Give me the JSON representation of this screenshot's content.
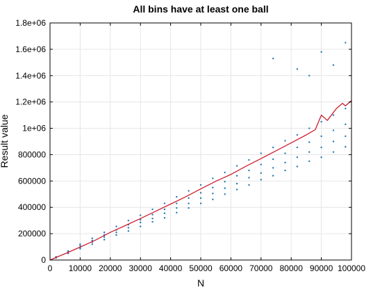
{
  "chart_data": {
    "type": "scatter",
    "title": "All bins have at least one ball",
    "xlabel": "N",
    "ylabel": "Result value",
    "xlim": [
      0,
      100000
    ],
    "ylim": [
      0,
      1800000
    ],
    "grid": true,
    "legend": "none",
    "x_ticks": [
      0,
      10000,
      20000,
      30000,
      40000,
      50000,
      60000,
      70000,
      80000,
      90000,
      100000
    ],
    "x_tick_labels": [
      "0",
      "10000",
      "20000",
      "30000",
      "40000",
      "50000",
      "60000",
      "70000",
      "80000",
      "90000",
      "100000"
    ],
    "y_ticks": [
      0,
      200000,
      400000,
      600000,
      800000,
      1000000,
      1200000,
      1400000,
      1600000,
      1800000
    ],
    "y_tick_labels": [
      "0",
      "200000",
      "400000",
      "600000",
      "800000",
      "1e+06",
      "1.2e+06",
      "1.4e+06",
      "1.6e+06",
      "1.8e+06"
    ],
    "series": [
      {
        "kind": "scatter",
        "color": "#1f77b4",
        "x": [
          2000,
          2000,
          2000,
          6000,
          6000,
          6000,
          10000,
          10000,
          10000,
          10000,
          14000,
          14000,
          14000,
          14000,
          18000,
          18000,
          18000,
          18000,
          22000,
          22000,
          22000,
          22000,
          26000,
          26000,
          26000,
          26000,
          30000,
          30000,
          30000,
          30000,
          34000,
          34000,
          34000,
          34000,
          38000,
          38000,
          38000,
          38000,
          42000,
          42000,
          42000,
          42000,
          46000,
          46000,
          46000,
          46000,
          50000,
          50000,
          50000,
          50000,
          54000,
          54000,
          54000,
          54000,
          58000,
          58000,
          58000,
          58000,
          62000,
          62000,
          62000,
          62000,
          66000,
          66000,
          66000,
          66000,
          70000,
          70000,
          70000,
          70000,
          74000,
          74000,
          74000,
          74000,
          74000,
          78000,
          78000,
          78000,
          78000,
          82000,
          82000,
          82000,
          82000,
          82000,
          86000,
          86000,
          86000,
          86000,
          86000,
          90000,
          90000,
          90000,
          90000,
          90000,
          94000,
          94000,
          94000,
          94000,
          94000,
          98000,
          98000,
          98000,
          98000,
          98000
        ],
        "y": [
          16000,
          20000,
          25000,
          50000,
          58000,
          68000,
          86000,
          95000,
          108000,
          120000,
          120000,
          135000,
          148000,
          165000,
          155000,
          175000,
          190000,
          210000,
          190000,
          210000,
          228000,
          255000,
          220000,
          245000,
          268000,
          300000,
          255000,
          285000,
          305000,
          340000,
          290000,
          315000,
          345000,
          385000,
          320000,
          355000,
          385000,
          430000,
          360000,
          395000,
          430000,
          480000,
          395000,
          430000,
          470000,
          525000,
          430000,
          470000,
          510000,
          570000,
          460000,
          505000,
          550000,
          620000,
          500000,
          545000,
          595000,
          665000,
          535000,
          580000,
          640000,
          715000,
          570000,
          625000,
          680000,
          760000,
          610000,
          660000,
          725000,
          810000,
          640000,
          700000,
          765000,
          855000,
          1530000,
          680000,
          740000,
          810000,
          905000,
          710000,
          780000,
          855000,
          950000,
          1450000,
          750000,
          820000,
          895000,
          1000000,
          1400000,
          780000,
          855000,
          940000,
          1050000,
          1580000,
          820000,
          900000,
          985000,
          1100000,
          1480000,
          860000,
          940000,
          1030000,
          1150000,
          1650000
        ]
      },
      {
        "kind": "line",
        "color": "#cc1f2f",
        "x": [
          0,
          5000,
          10000,
          15000,
          20000,
          25000,
          30000,
          35000,
          40000,
          45000,
          50000,
          55000,
          60000,
          65000,
          70000,
          75000,
          80000,
          85000,
          88000,
          90000,
          92000,
          95000,
          97000,
          98000,
          100000
        ],
        "y": [
          0,
          48000,
          98000,
          150000,
          210000,
          262000,
          315000,
          370000,
          425000,
          480000,
          540000,
          598000,
          650000,
          712000,
          770000,
          830000,
          890000,
          950000,
          990000,
          1100000,
          1060000,
          1150000,
          1190000,
          1170000,
          1210000
        ]
      }
    ]
  }
}
